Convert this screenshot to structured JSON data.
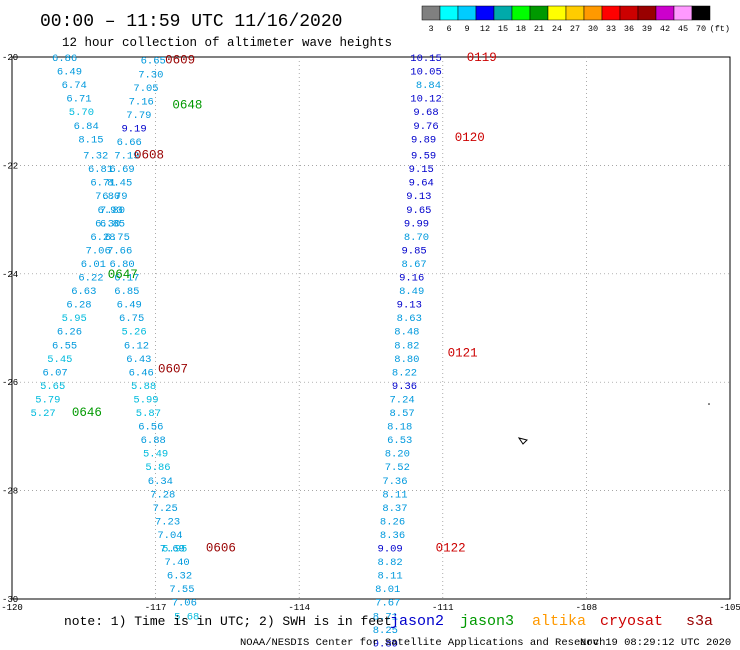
{
  "header": {
    "title": "00:00 – 11:59 UTC 11/16/2020",
    "subtitle": "12 hour collection of altimeter wave heights"
  },
  "colors": {
    "jason2": "#0000cc",
    "jason3": "#009900",
    "altika": "#ff9900",
    "cryosat": "#cc0000",
    "s3a": "#990000",
    "cyan": "#00bbdd",
    "light_blue": "#0099dd",
    "grid": "#999999"
  },
  "colorbar": {
    "swatches": [
      "#808080",
      "#00ffff",
      "#00ccff",
      "#0000ff",
      "#00aaaa",
      "#00ff00",
      "#009900",
      "#ffff00",
      "#ffcc00",
      "#ff9900",
      "#ff0000",
      "#cc0000",
      "#990000",
      "#cc00cc",
      "#ff99ff",
      "#000000"
    ],
    "labels": [
      "3",
      "6",
      "9",
      "12",
      "15",
      "18",
      "21",
      "24",
      "27",
      "30",
      "33",
      "36",
      "39",
      "42",
      "45",
      "70"
    ],
    "unit": "(ft)"
  },
  "map": {
    "lon_range": [
      -120,
      -105
    ],
    "lat_range": [
      -30,
      -20
    ],
    "x_ticks": [
      "-120",
      "-117",
      "-114",
      "-111",
      "-108",
      "-105"
    ],
    "y_ticks": [
      "-20",
      "-22",
      "-24",
      "-26",
      "-28",
      "-30"
    ],
    "grid": true,
    "land_features": [
      "small-island"
    ]
  },
  "passes": [
    {
      "time": "0609",
      "satellite": "s3a",
      "color": "#990000",
      "label_lon": -116.8,
      "label_lat": -20.05,
      "points": [
        {
          "v": "6.86",
          "lon": -118.9,
          "lat": -20.0
        },
        {
          "v": "6.49",
          "lon": -118.8,
          "lat": -20.25
        },
        {
          "v": "6.74",
          "lon": -118.7,
          "lat": -20.5
        },
        {
          "v": "6.71",
          "lon": -118.6,
          "lat": -20.75
        },
        {
          "v": "5.70",
          "lon": -118.55,
          "lat": -21.0
        },
        {
          "v": "6.84",
          "lon": -118.45,
          "lat": -21.25
        },
        {
          "v": "8.15",
          "lon": -118.35,
          "lat": -21.5
        },
        {
          "v": "7.32",
          "lon": -118.25,
          "lat": -21.8
        },
        {
          "v": "6.81",
          "lon": -118.15,
          "lat": -22.05
        },
        {
          "v": "6.71",
          "lon": -118.1,
          "lat": -22.3
        },
        {
          "v": "7.80",
          "lon": -118.0,
          "lat": -22.55
        },
        {
          "v": "6.93",
          "lon": -117.95,
          "lat": -22.8
        },
        {
          "v": "6.85",
          "lon": -117.9,
          "lat": -23.05
        },
        {
          "v": "6.75",
          "lon": -117.8,
          "lat": -23.3
        },
        {
          "v": "7.66",
          "lon": -117.75,
          "lat": -23.55
        },
        {
          "v": "6.80",
          "lon": -117.7,
          "lat": -23.8
        },
        {
          "v": "6.17",
          "lon": -117.6,
          "lat": -24.05
        }
      ]
    },
    {
      "time": "0648",
      "satellite": "jason3",
      "color": "#009900",
      "label_lon": -116.65,
      "label_lat": -20.88,
      "points": [
        {
          "v": "6.65",
          "lon": -117.05,
          "lat": -20.05
        },
        {
          "v": "7.30",
          "lon": -117.1,
          "lat": -20.3
        },
        {
          "v": "7.05",
          "lon": -117.2,
          "lat": -20.55
        },
        {
          "v": "7.16",
          "lon": -117.3,
          "lat": -20.8
        },
        {
          "v": "7.79",
          "lon": -117.35,
          "lat": -21.05
        },
        {
          "v": "9.19",
          "lon": -117.45,
          "lat": -21.3
        },
        {
          "v": "6.66",
          "lon": -117.55,
          "lat": -21.55
        },
        {
          "v": "7.19",
          "lon": -117.6,
          "lat": -21.8
        },
        {
          "v": "6.69",
          "lon": -117.7,
          "lat": -22.05
        },
        {
          "v": "8.45",
          "lon": -117.75,
          "lat": -22.3
        },
        {
          "v": "6.79",
          "lon": -117.85,
          "lat": -22.55
        },
        {
          "v": "7.80",
          "lon": -117.9,
          "lat": -22.8
        },
        {
          "v": "6.30",
          "lon": -118.0,
          "lat": -23.05
        },
        {
          "v": "6.28",
          "lon": -118.1,
          "lat": -23.3
        },
        {
          "v": "7.06",
          "lon": -118.2,
          "lat": -23.55
        },
        {
          "v": "6.01",
          "lon": -118.3,
          "lat": -23.8
        },
        {
          "v": "6.22",
          "lon": -118.35,
          "lat": -24.05
        }
      ]
    },
    {
      "time": "0608",
      "satellite": "s3a",
      "color": "#990000",
      "label_lon": -117.45,
      "label_lat": -21.8,
      "points": []
    },
    {
      "time": "0647",
      "satellite": "jason3",
      "color": "#009900",
      "label_lon": -118.0,
      "label_lat": -24.0,
      "points": [
        {
          "v": "6.63",
          "lon": -118.5,
          "lat": -24.3
        },
        {
          "v": "6.28",
          "lon": -118.6,
          "lat": -24.55
        },
        {
          "v": "5.95",
          "lon": -118.7,
          "lat": -24.8
        },
        {
          "v": "6.26",
          "lon": -118.8,
          "lat": -25.05
        },
        {
          "v": "6.55",
          "lon": -118.9,
          "lat": -25.3
        },
        {
          "v": "5.45",
          "lon": -119.0,
          "lat": -25.55
        },
        {
          "v": "6.07",
          "lon": -119.1,
          "lat": -25.8
        },
        {
          "v": "5.65",
          "lon": -119.15,
          "lat": -26.05
        },
        {
          "v": "5.79",
          "lon": -119.25,
          "lat": -26.3
        },
        {
          "v": "5.27",
          "lon": -119.35,
          "lat": -26.55
        }
      ]
    },
    {
      "time": "0646",
      "satellite": "jason3",
      "color": "#009900",
      "label_lon": -118.75,
      "label_lat": -26.55,
      "points": []
    },
    {
      "time": "0607",
      "satellite": "s3a",
      "color": "#990000",
      "label_lon": -116.95,
      "label_lat": -25.75,
      "points": [
        {
          "v": "6.85",
          "lon": -117.6,
          "lat": -24.3
        },
        {
          "v": "6.49",
          "lon": -117.55,
          "lat": -24.55
        },
        {
          "v": "6.75",
          "lon": -117.5,
          "lat": -24.8
        },
        {
          "v": "5.26",
          "lon": -117.45,
          "lat": -25.05
        },
        {
          "v": "6.12",
          "lon": -117.4,
          "lat": -25.3
        },
        {
          "v": "6.43",
          "lon": -117.35,
          "lat": -25.55
        },
        {
          "v": "6.46",
          "lon": -117.3,
          "lat": -25.8
        },
        {
          "v": "5.88",
          "lon": -117.25,
          "lat": -26.05
        },
        {
          "v": "5.99",
          "lon": -117.2,
          "lat": -26.3
        },
        {
          "v": "5.87",
          "lon": -117.15,
          "lat": -26.55
        },
        {
          "v": "6.56",
          "lon": -117.1,
          "lat": -26.8
        },
        {
          "v": "6.88",
          "lon": -117.05,
          "lat": -27.05
        },
        {
          "v": "5.49",
          "lon": -117.0,
          "lat": -27.3
        },
        {
          "v": "5.86",
          "lon": -116.95,
          "lat": -27.55
        },
        {
          "v": "6.34",
          "lon": -116.9,
          "lat": -27.8
        },
        {
          "v": "7.28",
          "lon": -116.85,
          "lat": -28.05
        },
        {
          "v": "7.25",
          "lon": -116.8,
          "lat": -28.3
        },
        {
          "v": "7.23",
          "lon": -116.75,
          "lat": -28.55
        }
      ]
    },
    {
      "time": "0606",
      "satellite": "s3a",
      "color": "#990000",
      "label_lon": -115.95,
      "label_lat": -29.05,
      "points": [
        {
          "v": "7.04",
          "lon": -116.7,
          "lat": -28.8
        },
        {
          "v": "7.69",
          "lon": -116.65,
          "lat": -29.05
        },
        {
          "v": "5.95",
          "lon": -116.6,
          "lat": -29.05
        },
        {
          "v": "7.40",
          "lon": -116.55,
          "lat": -29.3
        },
        {
          "v": "6.32",
          "lon": -116.5,
          "lat": -29.55
        },
        {
          "v": "7.55",
          "lon": -116.45,
          "lat": -29.8
        },
        {
          "v": "7.06",
          "lon": -116.4,
          "lat": -30.05
        },
        {
          "v": "5.68",
          "lon": -116.35,
          "lat": -30.3
        }
      ]
    },
    {
      "time": "0119",
      "satellite": "cryosat",
      "color": "#cc0000",
      "label_lon": -110.5,
      "label_lat": -20.0,
      "points": [
        {
          "v": "10.15",
          "lon": -111.35,
          "lat": -20.0
        },
        {
          "v": "10.05",
          "lon": -111.35,
          "lat": -20.25
        },
        {
          "v": "8.84",
          "lon": -111.3,
          "lat": -20.5
        },
        {
          "v": "10.12",
          "lon": -111.35,
          "lat": -20.75
        },
        {
          "v": "9.68",
          "lon": -111.35,
          "lat": -21.0
        },
        {
          "v": "9.76",
          "lon": -111.35,
          "lat": -21.25
        },
        {
          "v": "9.89",
          "lon": -111.4,
          "lat": -21.5
        },
        {
          "v": "9.59",
          "lon": -111.4,
          "lat": -21.8
        },
        {
          "v": "9.15",
          "lon": -111.45,
          "lat": -22.05
        },
        {
          "v": "9.64",
          "lon": -111.45,
          "lat": -22.3
        },
        {
          "v": "9.13",
          "lon": -111.5,
          "lat": -22.55
        },
        {
          "v": "9.65",
          "lon": -111.5,
          "lat": -22.8
        },
        {
          "v": "9.99",
          "lon": -111.55,
          "lat": -23.05
        },
        {
          "v": "8.70",
          "lon": -111.55,
          "lat": -23.3
        },
        {
          "v": "9.85",
          "lon": -111.6,
          "lat": -23.55
        },
        {
          "v": "8.67",
          "lon": -111.6,
          "lat": -23.8
        },
        {
          "v": "9.16",
          "lon": -111.65,
          "lat": -24.05
        }
      ]
    },
    {
      "time": "0120",
      "satellite": "cryosat",
      "color": "#cc0000",
      "label_lon": -110.75,
      "label_lat": -21.48,
      "points": []
    },
    {
      "time": "0121",
      "satellite": "cryosat",
      "color": "#cc0000",
      "label_lon": -110.9,
      "label_lat": -25.45,
      "points": [
        {
          "v": "8.49",
          "lon": -111.65,
          "lat": -24.3
        },
        {
          "v": "9.13",
          "lon": -111.7,
          "lat": -24.55
        },
        {
          "v": "8.63",
          "lon": -111.7,
          "lat": -24.8
        },
        {
          "v": "8.48",
          "lon": -111.75,
          "lat": -25.05
        },
        {
          "v": "8.82",
          "lon": -111.75,
          "lat": -25.3
        },
        {
          "v": "8.80",
          "lon": -111.75,
          "lat": -25.55
        },
        {
          "v": "8.22",
          "lon": -111.8,
          "lat": -25.8
        },
        {
          "v": "9.36",
          "lon": -111.8,
          "lat": -26.05
        },
        {
          "v": "7.24",
          "lon": -111.85,
          "lat": -26.3
        },
        {
          "v": "8.57",
          "lon": -111.85,
          "lat": -26.55
        },
        {
          "v": "8.18",
          "lon": -111.9,
          "lat": -26.8
        },
        {
          "v": "6.53",
          "lon": -111.9,
          "lat": -27.05
        },
        {
          "v": "8.20",
          "lon": -111.95,
          "lat": -27.3
        },
        {
          "v": "7.52",
          "lon": -111.95,
          "lat": -27.55
        },
        {
          "v": "7.36",
          "lon": -112.0,
          "lat": -27.8
        },
        {
          "v": "8.11",
          "lon": -112.0,
          "lat": -28.05
        },
        {
          "v": "8.37",
          "lon": -112.0,
          "lat": -28.3
        },
        {
          "v": "8.26",
          "lon": -112.05,
          "lat": -28.55
        },
        {
          "v": "8.36",
          "lon": -112.05,
          "lat": -28.8
        }
      ]
    },
    {
      "time": "0122",
      "satellite": "cryosat",
      "color": "#cc0000",
      "label_lon": -111.15,
      "label_lat": -29.05,
      "points": [
        {
          "v": "9.09",
          "lon": -112.1,
          "lat": -29.05
        },
        {
          "v": "8.82",
          "lon": -112.1,
          "lat": -29.3
        },
        {
          "v": "8.11",
          "lon": -112.1,
          "lat": -29.55
        },
        {
          "v": "8.01",
          "lon": -112.15,
          "lat": -29.8
        },
        {
          "v": "7.67",
          "lon": -112.15,
          "lat": -30.05
        },
        {
          "v": "8.71",
          "lon": -112.2,
          "lat": -30.3
        },
        {
          "v": "8.25",
          "lon": -112.2,
          "lat": -30.55
        },
        {
          "v": "9.89",
          "lon": -112.2,
          "lat": -30.8
        }
      ]
    }
  ],
  "footer": {
    "note": "note: 1) Time is in UTC; 2) SWH is in feet",
    "legend": [
      {
        "label": "jason2",
        "color": "#0000cc"
      },
      {
        "label": "jason3",
        "color": "#009900"
      },
      {
        "label": "altika",
        "color": "#ff9900"
      },
      {
        "label": "cryosat",
        "color": "#cc0000"
      },
      {
        "label": "s3a",
        "color": "#990000"
      }
    ],
    "credit": "NOAA/NESDIS Center for Satellite Applications and Research",
    "generated": "Nov 19 08:29:12 UTC 2020"
  }
}
